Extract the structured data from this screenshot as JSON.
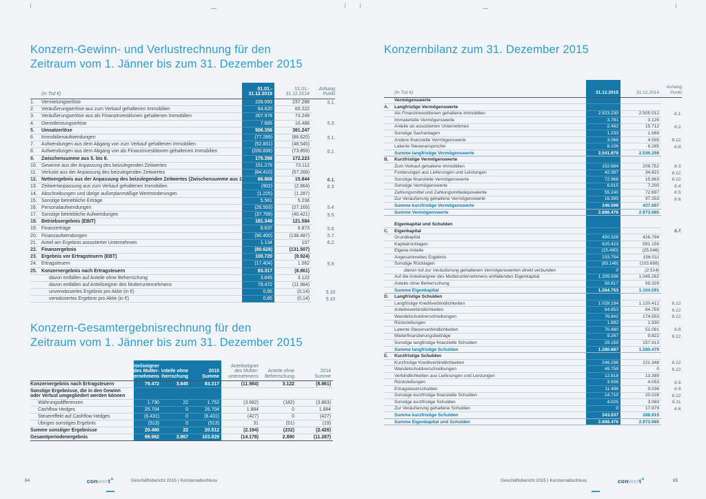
{
  "colors": {
    "accent_blue": "#2e9bc9",
    "highlight_column": "#1578a9"
  },
  "left_page": {
    "title1": "Konzern-Gewinn- und Verlustrechnung für den",
    "title2": "Zeitraum vom 1. Jänner bis zum 31. Dezember 2015",
    "pnl": {
      "header": {
        "unit": "(in Tsd €)",
        "c2015": "01.01.-\n31.12.2015",
        "c2014": "01.01.-\n31.12.2014",
        "anhang": "Anhang\nPunkt"
      },
      "rows": [
        {
          "n": "1.",
          "l": "Vermietungserlöse",
          "v1": "226.093",
          "v2": "237.288",
          "a": "5.1."
        },
        {
          "n": "2.",
          "l": "Veräußerungserlöse aus zum Verkauf gehaltenen Immobilien",
          "v1": "64.620",
          "v2": "60.222"
        },
        {
          "n": "3.",
          "l": "Veräußerungserlöse aus als Finanzinvestitionen gehaltenen Immobilien",
          "v1": "207.978",
          "v2": "73.249"
        },
        {
          "n": "4.",
          "l": "Dienstleistungserlöse",
          "v1": "7.665",
          "v2": "10.488",
          "a": "5.3."
        },
        {
          "n": "5.",
          "l": "Umsatzerlöse",
          "v1": "506.356",
          "v2": "381.247",
          "s": "b"
        },
        {
          "n": "6.",
          "l": "Immobilienaufwendungen",
          "v1": "(77.289)",
          "v2": "(86.620)",
          "a": "5.1."
        },
        {
          "n": "7.",
          "l": "Aufwendungen aus dem Abgang von zum Verkauf gehaltenen Immobilien",
          "v1": "(52.831)",
          "v2": "(48.545)"
        },
        {
          "n": "8.",
          "l": "Aufwendungen aus dem Abgang von als Finanzinvestitionen gehaltenen Immobilien",
          "v1": "(200.838)",
          "v2": "(73.859)",
          "a": "6.1."
        },
        {
          "n": "9.",
          "l": "Zwischensumme aus 5. bis 8.",
          "v1": "175.398",
          "v2": "172.223",
          "s": "b"
        },
        {
          "n": "10.",
          "l": "Gewinne aus der Anpassung des beizulegenden Zeitwertes",
          "v1": "151.279",
          "v2": "73.112"
        },
        {
          "n": "11.",
          "l": "Verluste aus der Anpassung des beizulegenden Zeitwertes",
          "v1": "(84.410)",
          "v2": "(57.268)"
        },
        {
          "n": "12.",
          "l": "Nettoergebnis aus der Anpassung des beizulegenden Zeitwertes  (Zwischensumme aus 10. und 11.)",
          "v1": "66.868",
          "v2": "15.844",
          "a": "6.1.",
          "s": "b"
        },
        {
          "n": "13.",
          "l": "Zeitwertanpassung aus zum Verkauf gehaltenen Immobilien",
          "v1": "(902)",
          "v2": "(2.864)",
          "a": "6.3."
        },
        {
          "n": "14.",
          "l": "Abschreibungen und übrige außerplanmäßige Wertminderungen",
          "v1": "(1.225)",
          "v2": "(1.287)"
        },
        {
          "n": "15.",
          "l": "Sonstige betriebliche Erträge",
          "v1": "5.561",
          "v2": "5.238"
        },
        {
          "n": "16.",
          "l": "Personalaufwendungen",
          "v1": "(26.593)",
          "v2": "(27.169)",
          "a": "5.4."
        },
        {
          "n": "17.",
          "l": "Sonstige betriebliche Aufwendungen",
          "v1": "(37.799)",
          "v2": "(40.421)",
          "a": "5.5."
        },
        {
          "n": "18.",
          "l": "Betriebsergebnis (EBIT)",
          "v1": "181.349",
          "v2": "121.584",
          "s": "b"
        },
        {
          "n": "19.",
          "l": "Finanzerträge",
          "v1": "8.637",
          "v2": "6.873",
          "a": "5.6."
        },
        {
          "n": "20.",
          "l": "Finanzaufwendungen",
          "v1": "(90.400)",
          "v2": "(138.487)",
          "a": "5.7."
        },
        {
          "n": "21.",
          "l": "Anteil am Ergebnis assoziierter Unternehmen",
          "v1": "1.134",
          "v2": "107",
          "a": "6.2."
        },
        {
          "n": "22.",
          "l": "Finanzergebnis",
          "v1": "(80.628)",
          "v2": "(131.507)",
          "s": "b"
        },
        {
          "n": "23.",
          "l": "Ergebnis vor Ertragsteuern (EBT)",
          "v1": "100.720",
          "v2": "(9.924)",
          "s": "b"
        },
        {
          "n": "24.",
          "l": "Ertragsteuern",
          "v1": "(17.404)",
          "v2": "1.062",
          "a": "5.9."
        },
        {
          "n": "25.",
          "l": "Konzernergebnis nach Ertragsteuern",
          "v1": "83.317",
          "v2": "(8.861)",
          "s": "b"
        },
        {
          "l": "davon entfallen auf Anteile ohne Beherrschung",
          "v1": "3.845",
          "v2": "3.122",
          "ind": true
        },
        {
          "l": "davon entfallen auf Anteilseigner des Mutterunternehmens",
          "v1": "79.472",
          "v2": "(11.984)",
          "ind": true
        },
        {
          "l": "unverwässertes Ergebnis pro Aktie (in €)",
          "v1": "0,95",
          "v2": "(0,14)",
          "a": "5.10",
          "ind": true
        },
        {
          "l": "verwässertes Ergebnis pro Aktie (in €)",
          "v1": "0,85",
          "v2": "(0,14)",
          "a": "5.10",
          "ind": true
        }
      ]
    },
    "oci_title1": "Konzern-Gesamtergebnisrechnung für den",
    "oci_title2": "Zeitraum vom 1. Jänner bis zum 31. Dezember 2015",
    "oci": {
      "header": {
        "g2015": [
          "Anteilseigner\ndes Mutter-\nunternehmens",
          "Anteile ohne\nBeherrschung",
          "2015\nSumme"
        ],
        "g2014": [
          "Anteilseigner\ndes Mutter-\nunternehmens",
          "Anteile ohne\nBeherrschung",
          "2014\nSumme"
        ]
      },
      "rows": [
        {
          "l": "Konzernergebnis nach Ertragsteuern",
          "c": [
            "79.472",
            "3.845",
            "83.317",
            "(11.984)",
            "3.122",
            "(8.861)"
          ],
          "s": "b"
        },
        {
          "l": "Sonstige Ergebnisse, die in den Gewinn\noder Verlust umgegliedert werden können",
          "s": "b",
          "tall": true
        },
        {
          "l": "Währungsdifferenzen",
          "c": [
            "1.730",
            "22",
            "1.752",
            "(3.682)",
            "(182)",
            "(3.863)"
          ],
          "ind": true
        },
        {
          "l": "Cashflow Hedges",
          "c": [
            "25.704",
            "0",
            "25.704",
            "1.884",
            "0",
            "1.884"
          ],
          "ind": true
        },
        {
          "l": "Steuereffekt auf Cashflow Hedges",
          "c": [
            "(6.431)",
            "0",
            "(6.431)",
            "(427)",
            "0",
            "(427)"
          ],
          "ind": true
        },
        {
          "l": "Übriges sonstiges Ergebnis",
          "c": [
            "(513)",
            "0",
            "(513)",
            "31",
            "(51)",
            "(19)"
          ],
          "ind": true
        },
        {
          "l": "Summe sonstiger Ergebnisse",
          "c": [
            "20.490",
            "22",
            "20.512",
            "(2.194)",
            "(232)",
            "(2.426)"
          ],
          "s": "b"
        },
        {
          "l": "Gesamtperiodenergebnis",
          "c": [
            "99.962",
            "3.867",
            "103.829",
            "(14.178)",
            "2.890",
            "(11.287)"
          ],
          "s": "b",
          "end": true
        }
      ]
    }
  },
  "right_page": {
    "title": "Konzernbilanz zum 31. Dezember 2015",
    "balance": {
      "header": {
        "unit": "(in Tsd €)",
        "c2015": "31.12.2015",
        "c2014": "31.12.2014",
        "anhang": "Anhang\nPunkt"
      },
      "rows": [
        {
          "l": "Vermögenswerte",
          "t": "sec"
        },
        {
          "n": "A.",
          "l": "Langfristige Vermögenswerte",
          "t": "sec"
        },
        {
          "l": "Als Finanzinvestitionen gehaltene Immobilien",
          "v1": "2.523.230",
          "v2": "2.505.012",
          "a": "6.1."
        },
        {
          "l": "Immaterielle Vermögenswerte",
          "v1": "3.781",
          "v2": "3.126"
        },
        {
          "l": "Anteile an assoziierten Unternehmen",
          "v1": "2.462",
          "v2": "15.712",
          "a": "6.2."
        },
        {
          "l": "Sonstige Sachanlagen",
          "v1": "1.233",
          "v2": "1.569"
        },
        {
          "l": "Andere finanzielle Vermögenswerte",
          "v1": "3.066",
          "v2": "4.595",
          "a": "6.12."
        },
        {
          "l": "Latente Steueransprüche",
          "v1": "8.106",
          "v2": "6.285",
          "a": "6.8."
        },
        {
          "l": "Summe langfristige Vermögenswerte",
          "v1": "2.541.879",
          "v2": "2.536.298",
          "t": "sum"
        },
        {
          "n": "B.",
          "l": "Kurzfristige Vermögenswerte",
          "t": "sec"
        },
        {
          "l": "Zum Verkauf gehaltene Immobilien",
          "v1": "152.684",
          "v2": "209.752",
          "a": "6.3."
        },
        {
          "l": "Forderungen aus Lieferungen und Leistungen",
          "v1": "42.397",
          "v2": "34.821",
          "a": "6.12."
        },
        {
          "l": "Sonstige finanzielle Vermögenswerte",
          "v1": "72.968",
          "v2": "15.863",
          "a": "6.12."
        },
        {
          "l": "Sonstige Vermögenswerte",
          "v1": "6.915",
          "v2": "7.200",
          "a": "6.4."
        },
        {
          "l": "Zahlungsmittel und Zahlungsmitteläquivalente",
          "v1": "55.240",
          "v2": "72.697",
          "a": "6.5."
        },
        {
          "l": "Zur Veräußerung gehaltene Vermögenswerte",
          "v1": "16.395",
          "v2": "97.353",
          "a": "6.6."
        },
        {
          "l": "Summe kurzfristige Vermögenswerte",
          "v1": "346.598",
          "v2": "437.687",
          "t": "sum"
        },
        {
          "l": "Summe Vermögenswerte",
          "v1": "2.888.476",
          "v2": "2.973.985",
          "t": "sum"
        },
        {
          "t": "sp"
        },
        {
          "l": "Eigenkapital und Schulden",
          "t": "sec"
        },
        {
          "n": "C.",
          "l": "Eigenkapital",
          "a": "6.7.",
          "t": "sec"
        },
        {
          "l": "Grundkapital",
          "v1": "450.326",
          "v2": "426.794"
        },
        {
          "l": "Kapitalrücklagen",
          "v1": "620.423",
          "v2": "591.159"
        },
        {
          "l": "Eigene Anteile",
          "v1": "(15.490)",
          "v2": "(25.046)"
        },
        {
          "l": "Angesammeltes Ergebnis",
          "v1": "233.754",
          "v2": "156.011"
        },
        {
          "l": "Sonstige Rücklagen",
          "v1": "(83.148)",
          "v2": "(103.698)"
        },
        {
          "l": "davon mit zur Veräußerung gehaltenen Vermögenswerten direkt verbunden",
          "v1": "0",
          "v2": "(2.514)",
          "t": "itl"
        },
        {
          "l": "Auf die Anteilseigner des Mutterunternehmens entfallendes Eigenkapital",
          "v1": "1.205.936",
          "v2": "1.045.262"
        },
        {
          "l": "Anteile ohne Beherrschung",
          "v1": "58.817",
          "v2": "59.329"
        },
        {
          "l": "Summe Eigenkapital",
          "v1": "1.264.753",
          "v2": "1.104.591",
          "t": "sum"
        },
        {
          "n": "D.",
          "l": "Langfristige Schulden",
          "t": "sec"
        },
        {
          "l": "Langfristige Kreditverbindlichkeiten",
          "v1": "1.028.194",
          "v2": "1.120.412",
          "a": "6.12."
        },
        {
          "l": "Anleiheverbindlichkeiten",
          "v1": "64.853",
          "v2": "64.759",
          "a": "6.12."
        },
        {
          "l": "Wandelschuldverschreibungen",
          "v1": "76.842",
          "v2": "174.553",
          "a": "6.12."
        },
        {
          "l": "Rückstellungen",
          "v1": "1.892",
          "v2": "1.930"
        },
        {
          "l": "Latente Steuerverbindlichkeiten",
          "v1": "70.480",
          "v2": "51.091",
          "a": "6.8."
        },
        {
          "l": "Mieterfinanzierungsbeiträge",
          "v1": "9.267",
          "v2": "9.822",
          "a": "6.12."
        },
        {
          "l": "Sonstige langfristige finanzielle Schulden",
          "v1": "29.159",
          "v2": "157.913"
        },
        {
          "l": "Summe langfristige Schulden",
          "v1": "1.280.687",
          "v2": "1.580.479",
          "t": "sum"
        },
        {
          "n": "E.",
          "l": "Kurzfristige Schulden",
          "t": "sec"
        },
        {
          "l": "Kurzfristige Kreditverbindlichkeiten",
          "v1": "246.296",
          "v2": "221.348",
          "a": "6.12."
        },
        {
          "l": "Wandelschuldverschreibungen",
          "v1": "49.759",
          "v2": "0",
          "a": "6.12."
        },
        {
          "l": "Verbindlichkeiten aus Lieferungen und Leistungen",
          "v1": "12.818",
          "v2": "13.389"
        },
        {
          "l": "Rückstellungen",
          "v1": "3.936",
          "v2": "4.053",
          "a": "6.9."
        },
        {
          "l": "Ertragsteuerschulden",
          "v1": "11.496",
          "v2": "9.036",
          "a": "6.9."
        },
        {
          "l": "Sonstige kurzfristige finanzielle Schulden",
          "v1": "14.710",
          "v2": "20.028",
          "a": "6.12."
        },
        {
          "l": "Sonstige kurzfristige Schulden",
          "v1": "4.025",
          "v2": "3.083",
          "a": "6.11."
        },
        {
          "l": "Zur Veräußerung gehaltene Schulden",
          "v1": "0",
          "v2": "17.979",
          "a": "6.6."
        },
        {
          "l": "Summe kurzfristige Schulden",
          "v1": "343.037",
          "v2": "288.915",
          "t": "sum"
        },
        {
          "l": "Summe Eigenkapital und Schulden",
          "v1": "2.888.476",
          "v2": "2.973.985",
          "t": "sum"
        }
      ]
    }
  },
  "footer": {
    "left": {
      "num": "84",
      "text": "Geschäftsbericht 2015 | Konzernabschluss"
    },
    "right": {
      "num": "85",
      "text": "Geschäftsbericht 2015 | Konzernabschluss"
    }
  },
  "logo": {
    "c1": "con",
    "c2": "wer",
    "c3": "t",
    "star": "✶"
  }
}
